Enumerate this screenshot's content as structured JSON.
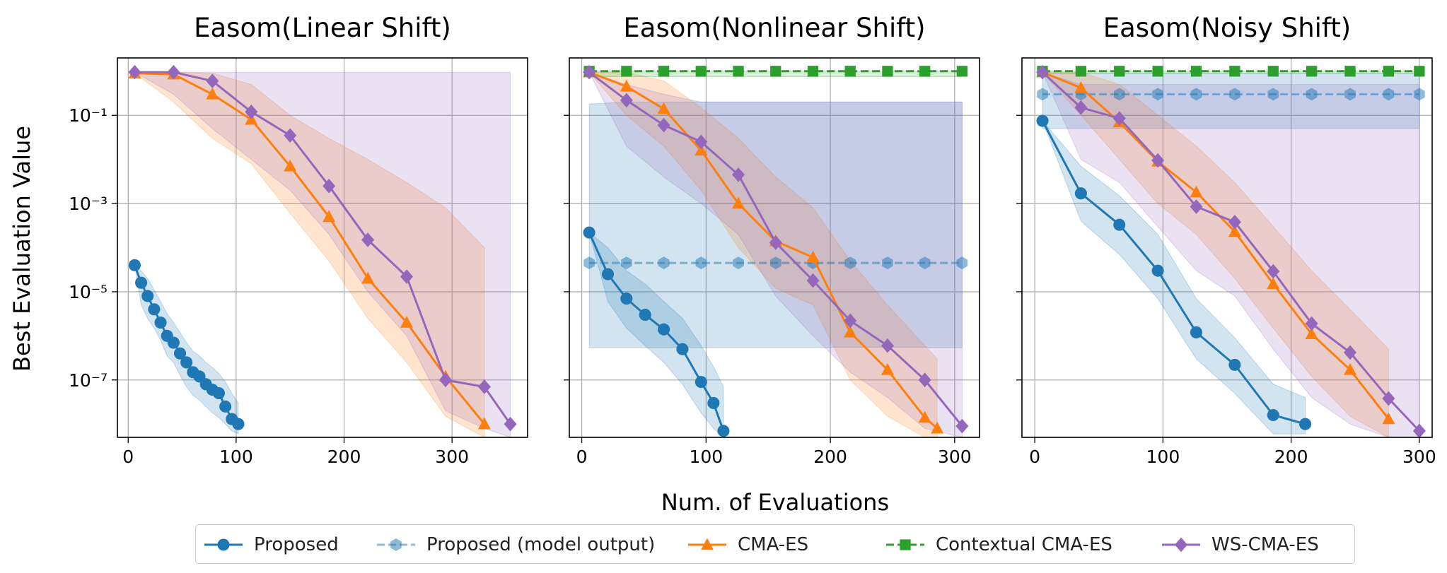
{
  "figure": {
    "ylabel": "Best Evaluation Value",
    "xlabel": "Num. of Evaluations"
  },
  "legend": [
    {
      "label": "Proposed",
      "color": "#1f77b4",
      "marker": "circle",
      "dash": false,
      "alpha": 1.0
    },
    {
      "label": "Proposed (model output)",
      "color": "#1f77b4",
      "marker": "hexagon",
      "dash": true,
      "alpha": 0.5
    },
    {
      "label": "CMA-ES",
      "color": "#ff7f0e",
      "marker": "triangle",
      "dash": false,
      "alpha": 1.0
    },
    {
      "label": "Contextual CMA-ES",
      "color": "#2ca02c",
      "marker": "square",
      "dash": true,
      "alpha": 1.0
    },
    {
      "label": "WS-CMA-ES",
      "color": "#9467bd",
      "marker": "diamond",
      "dash": false,
      "alpha": 1.0
    }
  ],
  "chart_data": [
    {
      "type": "line",
      "title": "Easom(Linear Shift)",
      "yscale": "log",
      "xlim": [
        -10,
        370
      ],
      "ylim": [
        5e-09,
        2
      ],
      "xticks": [
        "0",
        "100",
        "200",
        "300"
      ],
      "yticks": [
        "10^-1",
        "10^-3",
        "10^-5",
        "10^-7"
      ],
      "grid": true,
      "series": [
        {
          "name": "Proposed",
          "color": "#1f77b4",
          "marker": "circle",
          "x": [
            6,
            12,
            18,
            24,
            30,
            36,
            42,
            48,
            54,
            60,
            66,
            72,
            78,
            84,
            90,
            96,
            102
          ],
          "y": [
            4e-05,
            1.6e-05,
            8e-06,
            4e-06,
            2e-06,
            1e-06,
            7e-07,
            4e-07,
            2.5e-07,
            1.5e-07,
            1.2e-07,
            8e-08,
            6e-08,
            5e-08,
            2.5e-08,
            1.3e-08,
            1e-08
          ],
          "lower": [
            4e-05,
            5e-06,
            2.5e-06,
            1.5e-06,
            8e-07,
            3.5e-07,
            2.5e-07,
            1.3e-07,
            7e-08,
            4.5e-08,
            3.5e-08,
            2.5e-08,
            1.8e-08,
            1.4e-08,
            1e-08,
            7e-09,
            6e-09
          ],
          "upper": [
            4e-05,
            3e-05,
            2e-05,
            1.1e-05,
            6e-06,
            3.2e-06,
            2e-06,
            1.2e-06,
            7e-07,
            4.5e-07,
            3.5e-07,
            2.5e-07,
            1.9e-07,
            1.4e-07,
            9e-08,
            5e-08,
            3e-08
          ]
        },
        {
          "name": "CMA-ES",
          "color": "#ff7f0e",
          "marker": "triangle",
          "x": [
            6,
            42,
            78,
            114,
            150,
            186,
            222,
            258,
            294,
            330
          ],
          "y": [
            0.9,
            0.85,
            0.3,
            0.08,
            0.007,
            0.0005,
            2e-05,
            2e-06,
            1.2e-07,
            1e-08
          ],
          "lower": [
            0.9,
            0.2,
            0.03,
            0.008,
            0.0006,
            5e-05,
            2.5e-06,
            2.5e-07,
            1.5e-08,
            5e-09
          ],
          "upper": [
            0.9,
            0.95,
            0.9,
            0.5,
            0.1,
            0.03,
            0.01,
            0.003,
            0.0008,
            0.0001
          ]
        },
        {
          "name": "WS-CMA-ES",
          "color": "#9467bd",
          "marker": "diamond",
          "x": [
            6,
            42,
            78,
            114,
            150,
            186,
            222,
            258,
            294,
            330,
            354
          ],
          "y": [
            0.95,
            0.95,
            0.6,
            0.12,
            0.035,
            0.0025,
            0.00015,
            2.2e-05,
            1e-07,
            7e-08,
            1e-08
          ],
          "lower": [
            0.95,
            0.3,
            0.05,
            0.01,
            0.002,
            0.0002,
            1e-05,
            1e-06,
            2e-08,
            8e-09,
            5e-09
          ],
          "upper": [
            0.95,
            0.95,
            0.95,
            0.95,
            0.95,
            0.95,
            0.95,
            0.95,
            0.95,
            0.95,
            0.95
          ]
        }
      ]
    },
    {
      "type": "line",
      "title": "Easom(Nonlinear Shift)",
      "yscale": "log",
      "xlim": [
        -10,
        320
      ],
      "ylim": [
        5e-09,
        2
      ],
      "xticks": [
        "0",
        "100",
        "200",
        "300"
      ],
      "yticks": [],
      "grid": true,
      "series": [
        {
          "name": "Proposed",
          "color": "#1f77b4",
          "marker": "circle",
          "x": [
            6,
            21,
            36,
            51,
            66,
            81,
            96,
            106,
            114
          ],
          "y": [
            0.00022,
            2.5e-05,
            7e-06,
            3e-06,
            1.4e-06,
            5e-07,
            9e-08,
            3e-08,
            7e-09
          ],
          "lower": [
            0.00022,
            6e-06,
            1.5e-06,
            6e-07,
            2.5e-07,
            8e-08,
            1.8e-08,
            8e-09,
            5e-09
          ],
          "upper": [
            0.00022,
            0.0001,
            3e-05,
            1.5e-05,
            6e-06,
            2.5e-06,
            6e-07,
            2e-07,
            7e-08
          ]
        },
        {
          "name": "Proposed (model output)",
          "color": "#1f77b4",
          "marker": "hexagon",
          "x": [
            6,
            36,
            66,
            96,
            126,
            156,
            186,
            216,
            246,
            276,
            306
          ],
          "y": [
            4.5e-05,
            4.5e-05,
            4.5e-05,
            4.5e-05,
            4.5e-05,
            4.5e-05,
            4.5e-05,
            4.5e-05,
            4.5e-05,
            4.5e-05,
            4.5e-05
          ],
          "lower": [
            5.5e-07,
            5.5e-07,
            5.5e-07,
            5.5e-07,
            5.5e-07,
            5.5e-07,
            5.5e-07,
            5.5e-07,
            5.5e-07,
            5.5e-07,
            5.5e-07
          ],
          "upper": [
            0.18,
            0.2,
            0.2,
            0.2,
            0.2,
            0.2,
            0.2,
            0.2,
            0.2,
            0.2,
            0.2
          ]
        },
        {
          "name": "CMA-ES",
          "color": "#ff7f0e",
          "marker": "triangle",
          "x": [
            6,
            36,
            66,
            96,
            126,
            156,
            186,
            216,
            246,
            276,
            286
          ],
          "y": [
            0.95,
            0.45,
            0.14,
            0.016,
            0.001,
            0.00014,
            6e-05,
            1.2e-06,
            1.7e-07,
            1.4e-08,
            8e-09
          ],
          "lower": [
            0.95,
            0.1,
            0.02,
            0.002,
            0.0001,
            1.2e-05,
            5e-06,
            1e-07,
            1.5e-08,
            5e-09,
            5e-09
          ],
          "upper": [
            0.95,
            0.95,
            0.6,
            0.15,
            0.03,
            0.004,
            0.0008,
            5e-05,
            5e-06,
            6e-07,
            3e-07
          ]
        },
        {
          "name": "Contextual CMA-ES",
          "color": "#2ca02c",
          "marker": "square",
          "x": [
            6,
            36,
            66,
            96,
            126,
            156,
            186,
            216,
            246,
            276,
            306
          ],
          "y": [
            1,
            1,
            1,
            1,
            1,
            1,
            1,
            1,
            1,
            1,
            1
          ],
          "lower": [
            0.75,
            0.75,
            0.75,
            0.75,
            0.75,
            0.75,
            0.75,
            0.75,
            0.75,
            0.75,
            0.75
          ],
          "upper": [
            1,
            1,
            1,
            1,
            1,
            1,
            1,
            1,
            1,
            1,
            1
          ]
        },
        {
          "name": "WS-CMA-ES",
          "color": "#9467bd",
          "marker": "diamond",
          "x": [
            6,
            36,
            66,
            96,
            126,
            156,
            186,
            216,
            246,
            276,
            306
          ],
          "y": [
            0.95,
            0.22,
            0.06,
            0.025,
            0.0045,
            0.00013,
            1.8e-05,
            2.2e-06,
            6e-07,
            1e-07,
            9e-09
          ],
          "lower": [
            0.95,
            0.02,
            0.004,
            0.001,
            0.0002,
            8e-06,
            1e-06,
            1.5e-07,
            4e-08,
            8e-09,
            5e-09
          ],
          "upper": [
            0.95,
            0.5,
            0.3,
            0.2,
            0.2,
            0.2,
            0.2,
            0.2,
            0.2,
            0.2,
            0.2
          ]
        }
      ]
    },
    {
      "type": "line",
      "title": "Easom(Noisy Shift)",
      "yscale": "log",
      "xlim": [
        -10,
        310
      ],
      "ylim": [
        5e-09,
        2
      ],
      "xticks": [
        "0",
        "100",
        "200",
        "300"
      ],
      "yticks": [],
      "grid": true,
      "series": [
        {
          "name": "Proposed",
          "color": "#1f77b4",
          "marker": "circle",
          "x": [
            6,
            36,
            66,
            96,
            126,
            156,
            186,
            211
          ],
          "y": [
            0.075,
            0.0017,
            0.00033,
            3e-05,
            1.2e-06,
            2.2e-07,
            1.6e-08,
            1e-08
          ],
          "lower": [
            0.075,
            0.0004,
            7e-05,
            7e-06,
            3e-07,
            5e-08,
            6e-09,
            6e-09
          ],
          "upper": [
            0.075,
            0.007,
            0.0015,
            0.0002,
            7e-06,
            9e-07,
            8e-08,
            4e-08
          ]
        },
        {
          "name": "Proposed (model output)",
          "color": "#1f77b4",
          "marker": "hexagon",
          "x": [
            6,
            36,
            66,
            96,
            126,
            156,
            186,
            216,
            246,
            276,
            300
          ],
          "y": [
            0.3,
            0.3,
            0.3,
            0.3,
            0.3,
            0.3,
            0.3,
            0.3,
            0.3,
            0.3,
            0.3
          ],
          "lower": [
            0.05,
            0.05,
            0.05,
            0.05,
            0.05,
            0.05,
            0.05,
            0.05,
            0.05,
            0.05,
            0.05
          ],
          "upper": [
            0.9,
            0.9,
            0.9,
            0.9,
            0.9,
            0.9,
            0.9,
            0.9,
            0.9,
            0.9,
            0.9
          ]
        },
        {
          "name": "CMA-ES",
          "color": "#ff7f0e",
          "marker": "triangle",
          "x": [
            6,
            36,
            66,
            96,
            126,
            156,
            186,
            216,
            246,
            276
          ],
          "y": [
            0.95,
            0.42,
            0.07,
            0.009,
            0.0018,
            0.00023,
            1.5e-05,
            1.1e-06,
            1.7e-07,
            1.3e-08
          ],
          "lower": [
            0.95,
            0.1,
            0.01,
            0.001,
            0.0002,
            2e-05,
            1.5e-06,
            1.2e-07,
            1.5e-08,
            5e-09
          ],
          "upper": [
            0.95,
            0.95,
            0.5,
            0.1,
            0.02,
            0.003,
            0.0003,
            3e-05,
            4e-06,
            5e-07
          ]
        },
        {
          "name": "Contextual CMA-ES",
          "color": "#2ca02c",
          "marker": "square",
          "x": [
            6,
            36,
            66,
            96,
            126,
            156,
            186,
            216,
            246,
            276,
            300
          ],
          "y": [
            1,
            1,
            1,
            1,
            1,
            1,
            1,
            1,
            1,
            1,
            1
          ],
          "lower": [
            0.9,
            0.9,
            0.9,
            0.9,
            0.9,
            0.9,
            0.9,
            0.9,
            0.9,
            0.9,
            0.9
          ],
          "upper": [
            1,
            1,
            1,
            1,
            1,
            1,
            1,
            1,
            1,
            1,
            1
          ]
        },
        {
          "name": "WS-CMA-ES",
          "color": "#9467bd",
          "marker": "diamond",
          "x": [
            6,
            36,
            66,
            96,
            126,
            156,
            186,
            216,
            246,
            276,
            300
          ],
          "y": [
            0.95,
            0.15,
            0.085,
            0.0095,
            0.00085,
            0.00038,
            2.9e-05,
            1.9e-06,
            4.2e-07,
            3.8e-08,
            7e-09
          ],
          "lower": [
            0.95,
            0.01,
            0.003,
            0.0003,
            3e-05,
            8e-06,
            5e-07,
            4e-08,
            1e-08,
            5e-09,
            5e-09
          ],
          "upper": [
            0.95,
            0.5,
            0.5,
            0.5,
            0.5,
            0.5,
            0.5,
            0.5,
            0.5,
            0.5,
            0.5
          ]
        }
      ]
    }
  ]
}
